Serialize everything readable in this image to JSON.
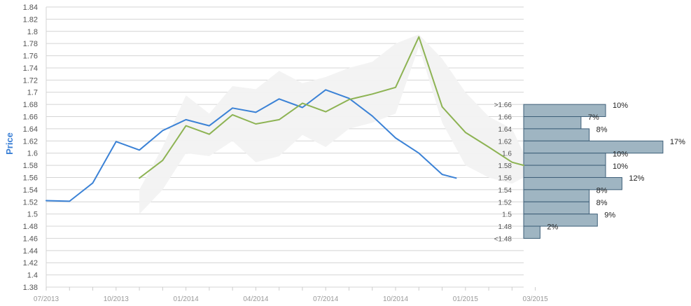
{
  "chart_data": {
    "type": "line",
    "title": "",
    "xlabel": "",
    "ylabel": "Price",
    "ylim": [
      1.38,
      1.84
    ],
    "y_ticks": [
      "1.38",
      "1.4",
      "1.42",
      "1.44",
      "1.46",
      "1.48",
      "1.5",
      "1.52",
      "1.54",
      "1.56",
      "1.58",
      "1.6",
      "1.62",
      "1.64",
      "1.66",
      "1.68",
      "1.7",
      "1.72",
      "1.74",
      "1.76",
      "1.78",
      "1.8",
      "1.82",
      "1.84"
    ],
    "x_ticks": [
      "07/2013",
      "10/2013",
      "01/2014",
      "04/2014",
      "07/2014",
      "10/2014",
      "01/2015",
      "03/2015"
    ],
    "x_tick_index": [
      0,
      3,
      6,
      9,
      12,
      15,
      18,
      21
    ],
    "xlim_index": [
      0,
      20.5
    ],
    "grid": true,
    "legend": "none",
    "series": [
      {
        "color": "#3b82d6",
        "x": [
          0,
          1,
          2,
          3,
          4,
          5,
          6,
          7,
          8,
          9,
          10,
          11,
          12,
          13,
          14,
          15,
          16,
          17,
          17.6
        ],
        "values": [
          1.522,
          1.521,
          1.551,
          1.619,
          1.605,
          1.637,
          1.655,
          1.645,
          1.674,
          1.667,
          1.689,
          1.675,
          1.704,
          1.69,
          1.661,
          1.625,
          1.6,
          1.565,
          1.559
        ]
      },
      {
        "color": "#8db353",
        "x": [
          4,
          5,
          6,
          7,
          8,
          9,
          10,
          11,
          12,
          13,
          14,
          15,
          16,
          17,
          18,
          19,
          20,
          20.5
        ],
        "values": [
          1.559,
          1.588,
          1.645,
          1.631,
          1.663,
          1.648,
          1.655,
          1.682,
          1.668,
          1.688,
          1.697,
          1.708,
          1.791,
          1.676,
          1.634,
          1.61,
          1.585,
          1.58
        ]
      }
    ],
    "band": {
      "color": "#f2f2f2",
      "x": [
        4,
        5,
        6,
        7,
        8,
        9,
        10,
        11,
        12,
        13,
        14,
        15,
        16,
        17,
        18,
        19,
        20,
        20.5
      ],
      "upper": [
        1.54,
        1.61,
        1.695,
        1.665,
        1.71,
        1.705,
        1.735,
        1.715,
        1.725,
        1.74,
        1.75,
        1.78,
        1.795,
        1.755,
        1.7,
        1.66,
        1.64,
        1.6
      ],
      "lower": [
        1.5,
        1.54,
        1.6,
        1.595,
        1.62,
        1.585,
        1.595,
        1.63,
        1.61,
        1.64,
        1.65,
        1.665,
        1.775,
        1.65,
        1.58,
        1.56,
        1.55,
        1.56
      ]
    },
    "distribution": {
      "color": "#9fb5c2",
      "border": "#3e5f78",
      "bins": [
        {
          "label": ">1.66",
          "pct": 10,
          "pct_label": "10%",
          "y_top": 1.68,
          "y_bottom": 1.66
        },
        {
          "label": "1.66",
          "pct": 7,
          "pct_label": "7%",
          "y_top": 1.66,
          "y_bottom": 1.64
        },
        {
          "label": "1.64",
          "pct": 8,
          "pct_label": "8%",
          "y_top": 1.64,
          "y_bottom": 1.62
        },
        {
          "label": "1.62",
          "pct": 17,
          "pct_label": "17%",
          "y_top": 1.62,
          "y_bottom": 1.6
        },
        {
          "label": "1.6",
          "pct": 10,
          "pct_label": "10%",
          "y_top": 1.6,
          "y_bottom": 1.58
        },
        {
          "label": "1.58",
          "pct": 10,
          "pct_label": "10%",
          "y_top": 1.58,
          "y_bottom": 1.56
        },
        {
          "label": "1.56",
          "pct": 12,
          "pct_label": "12%",
          "y_top": 1.56,
          "y_bottom": 1.54
        },
        {
          "label": "1.54",
          "pct": 8,
          "pct_label": "8%",
          "y_top": 1.54,
          "y_bottom": 1.52
        },
        {
          "label": "1.52",
          "pct": 8,
          "pct_label": "8%",
          "y_top": 1.52,
          "y_bottom": 1.5
        },
        {
          "label": "1.5",
          "pct": 9,
          "pct_label": "9%",
          "y_top": 1.5,
          "y_bottom": 1.48
        },
        {
          "label": "1.48",
          "pct": 2,
          "pct_label": "2%",
          "y_top": 1.48,
          "y_bottom": 1.46
        },
        {
          "label": "<1.48",
          "pct": null,
          "pct_label": "",
          "y_top": null,
          "y_bottom": null
        }
      ]
    }
  }
}
